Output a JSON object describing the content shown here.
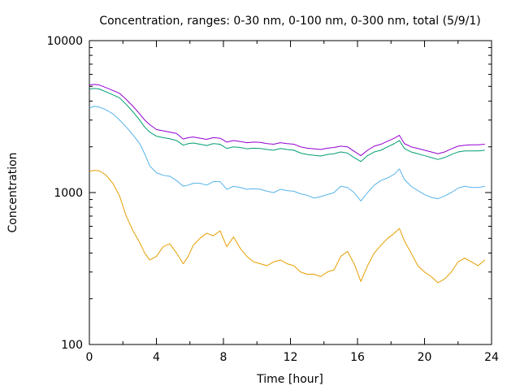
{
  "chart_data": {
    "type": "line",
    "title": "Concentration, ranges: 0-30 nm, 0-100 nm, 0-300 nm, total (5/9/1)",
    "xlabel": "Time [hour]",
    "ylabel": "Concentration",
    "xlim": [
      0,
      24
    ],
    "ylim": [
      100,
      10000
    ],
    "yscale": "log",
    "grid": false,
    "legend": "none",
    "xticks": [
      0,
      4,
      8,
      12,
      16,
      20,
      24
    ],
    "xtick_labels": [
      "0",
      "4",
      "8",
      "12",
      "16",
      "20",
      "24"
    ],
    "yticks": [
      100,
      1000,
      10000
    ],
    "ytick_labels": [
      "100",
      "1000",
      "10000"
    ],
    "series": [
      {
        "color": "#e69f00",
        "x": [
          0,
          0.3,
          0.6,
          1.0,
          1.4,
          1.8,
          2.2,
          2.6,
          3.0,
          3.3,
          3.6,
          4.0,
          4.4,
          4.8,
          5.2,
          5.6,
          5.9,
          6.2,
          6.6,
          7.0,
          7.4,
          7.8,
          8.2,
          8.6,
          9.0,
          9.4,
          9.8,
          10.2,
          10.6,
          11.0,
          11.4,
          11.8,
          12.2,
          12.6,
          13.0,
          13.4,
          13.8,
          14.2,
          14.6,
          15.0,
          15.4,
          15.8,
          16.2,
          16.6,
          17.0,
          17.4,
          17.8,
          18.2,
          18.5,
          18.8,
          19.2,
          19.6,
          20.0,
          20.4,
          20.8,
          21.2,
          21.6,
          22.0,
          22.4,
          22.8,
          23.2,
          23.6
        ],
        "values": [
          1380,
          1400,
          1390,
          1300,
          1150,
          950,
          700,
          560,
          470,
          400,
          360,
          380,
          440,
          460,
          400,
          340,
          380,
          450,
          500,
          540,
          520,
          560,
          440,
          510,
          430,
          380,
          350,
          340,
          330,
          350,
          360,
          340,
          330,
          300,
          290,
          290,
          280,
          300,
          310,
          380,
          410,
          340,
          260,
          330,
          400,
          450,
          500,
          540,
          580,
          480,
          400,
          330,
          300,
          280,
          255,
          270,
          300,
          350,
          370,
          350,
          330,
          360
        ]
      },
      {
        "color": "#56b4e9",
        "x": [
          0,
          0.3,
          0.6,
          1.0,
          1.4,
          1.8,
          2.2,
          2.6,
          3.0,
          3.3,
          3.6,
          4.0,
          4.4,
          4.8,
          5.2,
          5.6,
          5.9,
          6.2,
          6.6,
          7.0,
          7.4,
          7.8,
          8.2,
          8.6,
          9.0,
          9.4,
          9.8,
          10.2,
          10.6,
          11.0,
          11.4,
          11.8,
          12.2,
          12.6,
          13.0,
          13.4,
          13.8,
          14.2,
          14.6,
          15.0,
          15.4,
          15.8,
          16.2,
          16.6,
          17.0,
          17.4,
          17.8,
          18.2,
          18.5,
          18.8,
          19.2,
          19.6,
          20.0,
          20.4,
          20.8,
          21.2,
          21.6,
          22.0,
          22.4,
          22.8,
          23.2,
          23.6
        ],
        "values": [
          3600,
          3700,
          3650,
          3500,
          3300,
          3000,
          2700,
          2400,
          2100,
          1800,
          1500,
          1350,
          1300,
          1280,
          1200,
          1100,
          1120,
          1150,
          1150,
          1120,
          1180,
          1180,
          1050,
          1100,
          1080,
          1050,
          1060,
          1050,
          1020,
          1000,
          1050,
          1030,
          1020,
          980,
          960,
          920,
          940,
          970,
          1000,
          1100,
          1080,
          1000,
          880,
          1000,
          1120,
          1200,
          1250,
          1320,
          1430,
          1220,
          1100,
          1030,
          970,
          930,
          910,
          950,
          1000,
          1070,
          1100,
          1080,
          1080,
          1100
        ]
      },
      {
        "color": "#009e73",
        "x": [
          0,
          0.3,
          0.6,
          1.0,
          1.4,
          1.8,
          2.2,
          2.6,
          3.0,
          3.3,
          3.6,
          4.0,
          4.4,
          4.8,
          5.2,
          5.6,
          5.9,
          6.2,
          6.6,
          7.0,
          7.4,
          7.8,
          8.2,
          8.6,
          9.0,
          9.4,
          9.8,
          10.2,
          10.6,
          11.0,
          11.4,
          11.8,
          12.2,
          12.6,
          13.0,
          13.4,
          13.8,
          14.2,
          14.6,
          15.0,
          15.4,
          15.8,
          16.2,
          16.6,
          17.0,
          17.4,
          17.8,
          18.2,
          18.5,
          18.8,
          19.2,
          19.6,
          20.0,
          20.4,
          20.8,
          21.2,
          21.6,
          22.0,
          22.4,
          22.8,
          23.2,
          23.6
        ],
        "values": [
          4800,
          4850,
          4800,
          4600,
          4400,
          4200,
          3800,
          3400,
          3000,
          2700,
          2500,
          2350,
          2300,
          2260,
          2200,
          2050,
          2100,
          2120,
          2080,
          2040,
          2100,
          2080,
          1950,
          2000,
          1980,
          1940,
          1960,
          1950,
          1920,
          1900,
          1950,
          1920,
          1900,
          1820,
          1780,
          1760,
          1740,
          1780,
          1800,
          1850,
          1820,
          1700,
          1600,
          1750,
          1850,
          1900,
          2000,
          2100,
          2200,
          1950,
          1850,
          1800,
          1750,
          1700,
          1650,
          1700,
          1780,
          1850,
          1880,
          1880,
          1880,
          1900
        ]
      },
      {
        "color": "#9400d3",
        "x": [
          0,
          0.3,
          0.6,
          1.0,
          1.4,
          1.8,
          2.2,
          2.6,
          3.0,
          3.3,
          3.6,
          4.0,
          4.4,
          4.8,
          5.2,
          5.6,
          5.9,
          6.2,
          6.6,
          7.0,
          7.4,
          7.8,
          8.2,
          8.6,
          9.0,
          9.4,
          9.8,
          10.2,
          10.6,
          11.0,
          11.4,
          11.8,
          12.2,
          12.6,
          13.0,
          13.4,
          13.8,
          14.2,
          14.6,
          15.0,
          15.4,
          15.8,
          16.2,
          16.6,
          17.0,
          17.4,
          17.8,
          18.2,
          18.5,
          18.8,
          19.2,
          19.6,
          20.0,
          20.4,
          20.8,
          21.2,
          21.6,
          22.0,
          22.4,
          22.8,
          23.2,
          23.6
        ],
        "values": [
          5100,
          5150,
          5100,
          4900,
          4700,
          4500,
          4100,
          3700,
          3300,
          3000,
          2800,
          2600,
          2550,
          2500,
          2450,
          2250,
          2300,
          2320,
          2280,
          2240,
          2300,
          2280,
          2150,
          2200,
          2170,
          2130,
          2150,
          2140,
          2100,
          2080,
          2130,
          2100,
          2080,
          2000,
          1960,
          1940,
          1920,
          1960,
          1980,
          2020,
          2000,
          1870,
          1750,
          1900,
          2020,
          2080,
          2180,
          2280,
          2380,
          2100,
          2000,
          1950,
          1900,
          1850,
          1800,
          1850,
          1940,
          2020,
          2050,
          2060,
          2060,
          2080
        ]
      }
    ]
  }
}
